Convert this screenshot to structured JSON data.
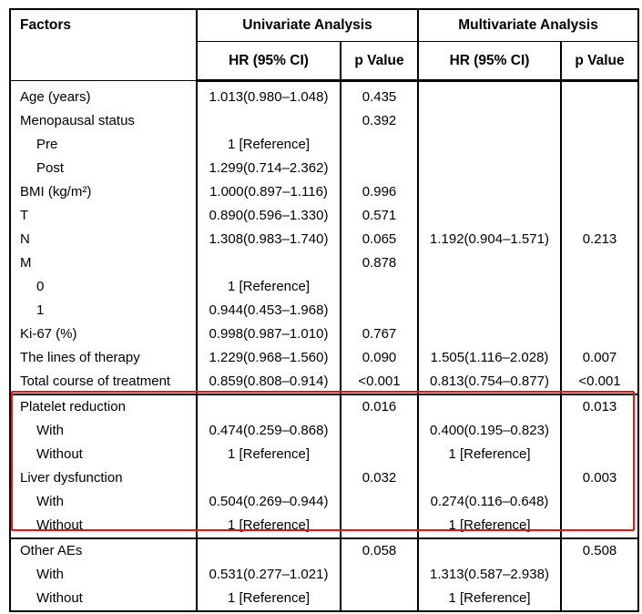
{
  "header": {
    "factors": "Factors",
    "univariate": "Univariate Analysis",
    "multivariate": "Multivariate Analysis",
    "hr": "HR (95% CI)",
    "p": "p Value"
  },
  "rows": [
    {
      "factor": "Age (years)",
      "indent": false,
      "uhr": "1.013(0.980–1.048)",
      "up": "0.435",
      "mhr": "",
      "mp": ""
    },
    {
      "factor": "Menopausal status",
      "indent": false,
      "uhr": "",
      "up": "0.392",
      "mhr": "",
      "mp": ""
    },
    {
      "factor": "Pre",
      "indent": true,
      "uhr": "1 [Reference]",
      "up": "",
      "mhr": "",
      "mp": ""
    },
    {
      "factor": "Post",
      "indent": true,
      "uhr": "1.299(0.714–2.362)",
      "up": "",
      "mhr": "",
      "mp": ""
    },
    {
      "factor": "BMI (kg/m²)",
      "indent": false,
      "uhr": "1.000(0.897–1.116)",
      "up": "0.996",
      "mhr": "",
      "mp": ""
    },
    {
      "factor": "T",
      "indent": false,
      "uhr": "0.890(0.596–1.330)",
      "up": "0.571",
      "mhr": "",
      "mp": ""
    },
    {
      "factor": "N",
      "indent": false,
      "uhr": "1.308(0.983–1.740)",
      "up": "0.065",
      "mhr": "1.192(0.904–1.571)",
      "mp": "0.213"
    },
    {
      "factor": "M",
      "indent": false,
      "uhr": "",
      "up": "0.878",
      "mhr": "",
      "mp": ""
    },
    {
      "factor": "0",
      "indent": true,
      "uhr": "1 [Reference]",
      "up": "",
      "mhr": "",
      "mp": ""
    },
    {
      "factor": "1",
      "indent": true,
      "uhr": "0.944(0.453–1.968)",
      "up": "",
      "mhr": "",
      "mp": ""
    },
    {
      "factor": "Ki-67 (%)",
      "indent": false,
      "uhr": "0.998(0.987–1.010)",
      "up": "0.767",
      "mhr": "",
      "mp": ""
    },
    {
      "factor": "The lines of therapy",
      "indent": false,
      "uhr": "1.229(0.968–1.560)",
      "up": "0.090",
      "mhr": "1.505(1.116–2.028)",
      "mp": "0.007"
    },
    {
      "factor": "Total course of treatment",
      "indent": false,
      "uhr": "0.859(0.808–0.914)",
      "up": "<0.001",
      "mhr": "0.813(0.754–0.877)",
      "mp": "<0.001"
    },
    {
      "factor": "Platelet reduction",
      "indent": false,
      "uhr": "",
      "up": "0.016",
      "mhr": "",
      "mp": "0.013"
    },
    {
      "factor": "With",
      "indent": true,
      "uhr": "0.474(0.259–0.868)",
      "up": "",
      "mhr": "0.400(0.195–0.823)",
      "mp": ""
    },
    {
      "factor": "Without",
      "indent": true,
      "uhr": "1 [Reference]",
      "up": "",
      "mhr": "1 [Reference]",
      "mp": ""
    },
    {
      "factor": "Liver dysfunction",
      "indent": false,
      "uhr": "",
      "up": "0.032",
      "mhr": "",
      "mp": "0.003"
    },
    {
      "factor": "With",
      "indent": true,
      "uhr": "0.504(0.269–0.944)",
      "up": "",
      "mhr": "0.274(0.116–0.648)",
      "mp": ""
    },
    {
      "factor": "Without",
      "indent": true,
      "uhr": "1 [Reference]",
      "up": "",
      "mhr": "1 [Reference]",
      "mp": ""
    },
    {
      "factor": "Other AEs",
      "indent": false,
      "uhr": "",
      "up": "0.058",
      "mhr": "",
      "mp": "0.508"
    },
    {
      "factor": "With",
      "indent": true,
      "uhr": "0.531(0.277–1.021)",
      "up": "",
      "mhr": "1.313(0.587–2.938)",
      "mp": ""
    },
    {
      "factor": "Without",
      "indent": true,
      "uhr": "1 [Reference]",
      "up": "",
      "mhr": "1 [Reference]",
      "mp": ""
    }
  ],
  "highlight_color": "#e8140f"
}
